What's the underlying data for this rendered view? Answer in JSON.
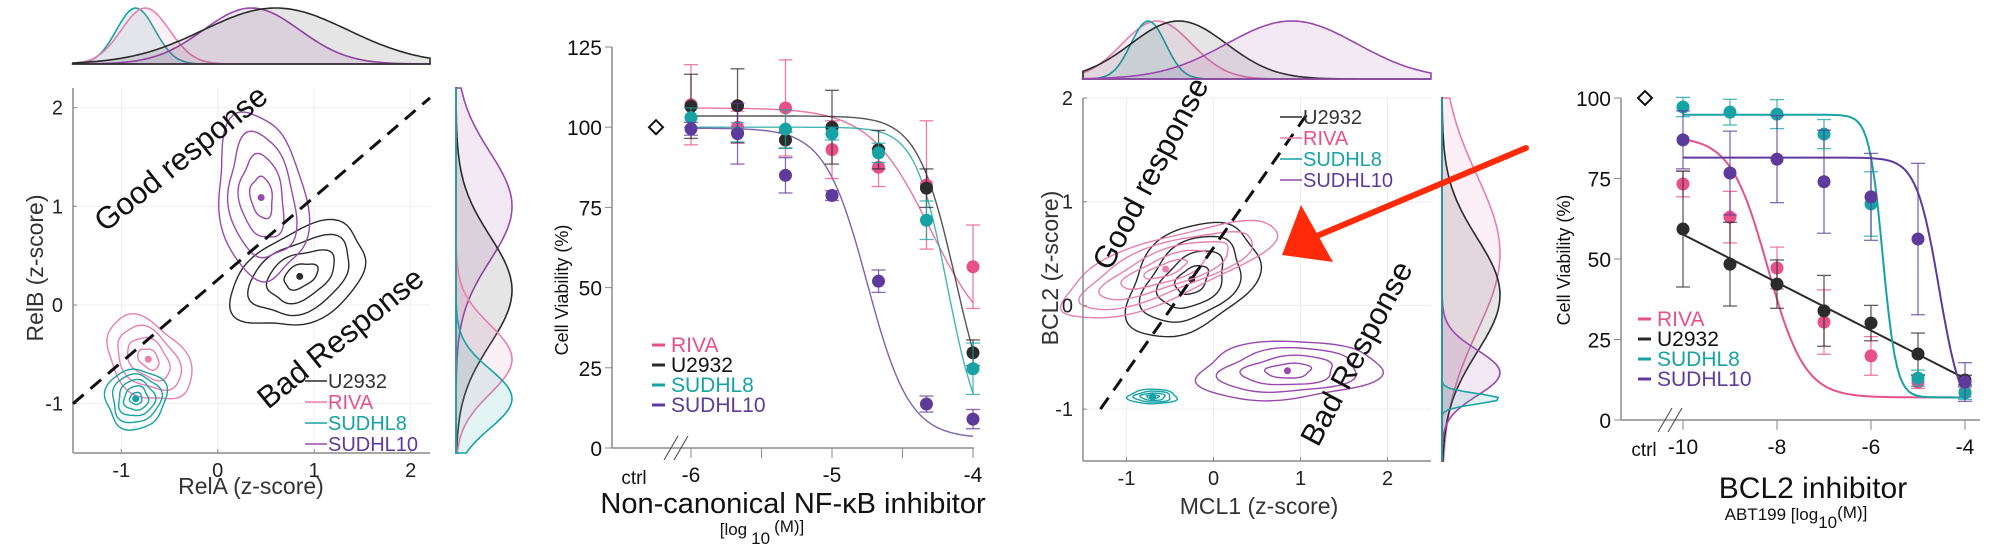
{
  "colors": {
    "RIVA": "#E8508A",
    "U2932": "#2B2B2B",
    "SUDHL8": "#17A2A4",
    "SUDHL10": "#5E3A9B",
    "SUDHL10_density": "#9A48AE",
    "RIVA_density": "#E77FB0",
    "arrow": "#FF2A0A",
    "axis": "#8A8A8A",
    "grid": "#EEEEEE"
  },
  "chart_data": [
    {
      "id": "relA-relB-density",
      "type": "contour",
      "xlabel": "RelA (z-score)",
      "ylabel": "RelB (z-score)",
      "xlim": [
        -1.5,
        2.2
      ],
      "ylim": [
        -1.5,
        2.2
      ],
      "xticks": [
        -1,
        0,
        1,
        2
      ],
      "yticks": [
        -1,
        0,
        1,
        2
      ],
      "grid": true,
      "legend": {
        "position": "bottom-right",
        "entries": [
          "U2932",
          "RIVA",
          "SUDHL8",
          "SUDHL10"
        ]
      },
      "annotations": {
        "good": "Good response",
        "bad": "Bad Response",
        "divider_line": {
          "from": [
            -1.5,
            -1.0
          ],
          "to": [
            2.2,
            2.1
          ],
          "style": "dashed"
        }
      },
      "series": [
        {
          "name": "U2932",
          "center": [
            0.85,
            0.29
          ],
          "spread": [
            0.75,
            0.45
          ],
          "tilt_deg": 28,
          "levels": 4
        },
        {
          "name": "RIVA",
          "center": [
            -0.72,
            -0.55
          ],
          "spread": [
            0.35,
            0.5
          ],
          "tilt_deg": 45,
          "levels": 4
        },
        {
          "name": "SUDHL8",
          "center": [
            -0.85,
            -0.95
          ],
          "spread": [
            0.32,
            0.3
          ],
          "tilt_deg": 40,
          "levels": 5
        },
        {
          "name": "SUDHL10",
          "center": [
            0.45,
            1.09
          ],
          "spread": [
            0.45,
            0.85
          ],
          "tilt_deg": 8,
          "levels": 4
        }
      ],
      "marginal_x": [
        {
          "name": "SUDHL8",
          "mean": -0.85,
          "sd": 0.2
        },
        {
          "name": "RIVA",
          "mean": -0.75,
          "sd": 0.25
        },
        {
          "name": "SUDHL10",
          "mean": 0.35,
          "sd": 0.5
        },
        {
          "name": "U2932",
          "mean": 0.6,
          "sd": 0.75
        }
      ],
      "marginal_y": [
        {
          "name": "SUDHL10",
          "mean": 1.0,
          "sd": 0.55
        },
        {
          "name": "U2932",
          "mean": 0.15,
          "sd": 0.55
        },
        {
          "name": "RIVA",
          "mean": -0.55,
          "sd": 0.35
        },
        {
          "name": "SUDHL8",
          "mean": -0.95,
          "sd": 0.3
        }
      ]
    },
    {
      "id": "nfkb-viability",
      "type": "line",
      "ylabel": "Cell Viability (%)",
      "xlabel": "Non-canonical NF-κB inhibitor",
      "xlabel_sub_prefix": "[log",
      "xlabel_sub_base": "10",
      "xlabel_sub_suffix": "(M)]",
      "ylim": [
        0,
        125
      ],
      "yticks": [
        0,
        25,
        50,
        75,
        100,
        125
      ],
      "xlim": [
        -6,
        -4
      ],
      "xticks": [
        -6,
        -5.5,
        -5,
        -4.5,
        -4
      ],
      "xtick_labels": [
        "-6",
        "",
        "-5",
        "",
        "-4"
      ],
      "ctrl_label": "ctrl",
      "ctrl_value": 100,
      "legend": {
        "position": "bottom-left",
        "entries": [
          "RIVA",
          "U2932",
          "SUDHL8",
          "SUDHL10"
        ]
      },
      "x": [
        -6,
        -5.67,
        -5.33,
        -5,
        -4.67,
        -4.33,
        -4
      ],
      "series": [
        {
          "name": "RIVA",
          "values": [
            107,
            100,
            106,
            93,
            87.5,
            82,
            56.5
          ],
          "errors": [
            12.5,
            5,
            15,
            9,
            6,
            20,
            13
          ],
          "fit": {
            "top": 106,
            "bottom": 30,
            "ec50": -4.3,
            "hill": 1.0
          }
        },
        {
          "name": "U2932",
          "values": [
            106.5,
            106.7,
            96,
            100,
            93,
            81,
            29.7
          ],
          "errors": [
            10,
            11.5,
            2.5,
            11.5,
            6,
            6,
            4
          ],
          "fit": {
            "top": 103.5,
            "bottom": 0,
            "ec50": -4.12,
            "hill": 1.6
          }
        },
        {
          "name": "SUDHL8",
          "values": [
            103,
            98.4,
            99.4,
            98,
            92,
            71,
            24.7
          ],
          "errors": [
            3,
            3,
            6,
            2,
            3,
            6,
            8
          ],
          "fit": {
            "top": 100,
            "bottom": 0,
            "ec50": -4.18,
            "hill": 1.9
          }
        },
        {
          "name": "SUDHL10",
          "values": [
            99.5,
            98,
            85,
            78.7,
            52,
            13.7,
            9
          ],
          "errors": [
            2,
            9.5,
            5.5,
            1.5,
            3.5,
            2.5,
            3
          ],
          "fit": {
            "top": 99.7,
            "bottom": 3,
            "ec50": -4.75,
            "hill": 1.45
          }
        }
      ]
    },
    {
      "id": "mcl1-bcl2-density",
      "type": "contour",
      "xlabel": "MCL1 (z-score)",
      "ylabel": "BCL2 (z-score)",
      "xlim": [
        -1.5,
        2.5
      ],
      "ylim": [
        -1.5,
        2.0
      ],
      "xticks": [
        -1,
        0,
        1,
        2
      ],
      "yticks": [
        -1,
        0,
        1,
        2
      ],
      "grid": true,
      "legend": {
        "position": "top-right",
        "entries": [
          "U2932",
          "RIVA",
          "SUDHL8",
          "SUDHL10"
        ]
      },
      "annotations": {
        "good": "Good response",
        "bad": "Bad Response",
        "divider_line": {
          "from": [
            -1.3,
            -1.0
          ],
          "to": [
            1.08,
            1.85
          ],
          "style": "dashed"
        },
        "arrow": "red arrow pointing to U2932 contour"
      },
      "series": [
        {
          "name": "U2932",
          "center": [
            -0.25,
            0.25
          ],
          "spread": [
            0.55,
            0.7
          ],
          "tilt_deg": -55,
          "levels": 4
        },
        {
          "name": "RIVA",
          "center": [
            -0.55,
            0.35
          ],
          "spread": [
            0.35,
            1.1
          ],
          "tilt_deg": -70,
          "levels": 5
        },
        {
          "name": "SUDHL8",
          "center": [
            -0.7,
            -0.88
          ],
          "spread": [
            0.28,
            0.07
          ],
          "tilt_deg": 0,
          "levels": 4
        },
        {
          "name": "SUDHL10",
          "center": [
            0.85,
            -0.63
          ],
          "spread": [
            1.05,
            0.28
          ],
          "tilt_deg": 3,
          "levels": 4
        }
      ],
      "marginal_x": [
        {
          "name": "RIVA",
          "mean": -0.65,
          "sd": 0.4
        },
        {
          "name": "SUDHL8",
          "mean": -0.75,
          "sd": 0.2
        },
        {
          "name": "U2932",
          "mean": -0.4,
          "sd": 0.55
        },
        {
          "name": "SUDHL10",
          "mean": 0.9,
          "sd": 0.75
        }
      ],
      "marginal_y": [
        {
          "name": "RIVA",
          "mean": 0.5,
          "sd": 0.75
        },
        {
          "name": "U2932",
          "mean": 0.1,
          "sd": 0.55
        },
        {
          "name": "SUDHL10",
          "mean": -0.65,
          "sd": 0.22
        },
        {
          "name": "SUDHL8",
          "mean": -0.9,
          "sd": 0.05
        }
      ]
    },
    {
      "id": "bcl2-viability",
      "type": "line",
      "ylabel": "Cell Viability (%)",
      "xlabel": "BCL2 inhibitor",
      "xlabel_sub_prefix": "ABT199 [log",
      "xlabel_sub_base": "10",
      "xlabel_sub_suffix": "(M)]",
      "ylim": [
        0,
        100
      ],
      "yticks": [
        0,
        25,
        50,
        75,
        100
      ],
      "xlim": [
        -10,
        -4
      ],
      "xticks": [
        -10,
        -8,
        -6,
        -4
      ],
      "xtick_labels": [
        "-10",
        "-8",
        "-6",
        "-4"
      ],
      "ctrl_label": "ctrl",
      "ctrl_value": 100,
      "legend": {
        "position": "bottom-left",
        "entries": [
          "RIVA",
          "U2932",
          "SUDHL8",
          "SUDHL10"
        ]
      },
      "x": [
        -10,
        -9,
        -8,
        -7,
        -6,
        -5,
        -4
      ],
      "series": [
        {
          "name": "RIVA",
          "values": [
            73.3,
            63,
            47.2,
            30.4,
            19.9,
            11.8,
            8.7
          ],
          "errors": [
            4,
            8,
            6.5,
            10,
            6,
            2,
            1.5
          ],
          "fit": {
            "top": 88,
            "bottom": 7,
            "ec50": -8.2,
            "hill": 0.55
          }
        },
        {
          "name": "U2932",
          "values": [
            59.3,
            48.4,
            42.2,
            33.9,
            30.1,
            20.5,
            12.4
          ],
          "errors": [
            18,
            13,
            7.5,
            11,
            5.5,
            6.5,
            1.5
          ],
          "linear": true
        },
        {
          "name": "SUDHL8",
          "values": [
            97.2,
            95.6,
            95.0,
            88.8,
            67.1,
            13,
            8.4
          ],
          "errors": [
            3,
            4,
            4.5,
            4.5,
            10,
            2.5,
            2
          ],
          "fit": {
            "top": 94.8,
            "bottom": 7,
            "ec50": -5.75,
            "hill": 1.5
          }
        },
        {
          "name": "SUDHL10",
          "values": [
            87,
            76.7,
            81,
            74,
            69.3,
            56.2,
            11.8
          ],
          "errors": [
            9,
            13,
            13.5,
            16,
            13.5,
            23.5,
            6
          ],
          "fit": {
            "top": 81.5,
            "bottom": 0,
            "ec50": -4.55,
            "hill": 0.9
          }
        }
      ]
    }
  ]
}
